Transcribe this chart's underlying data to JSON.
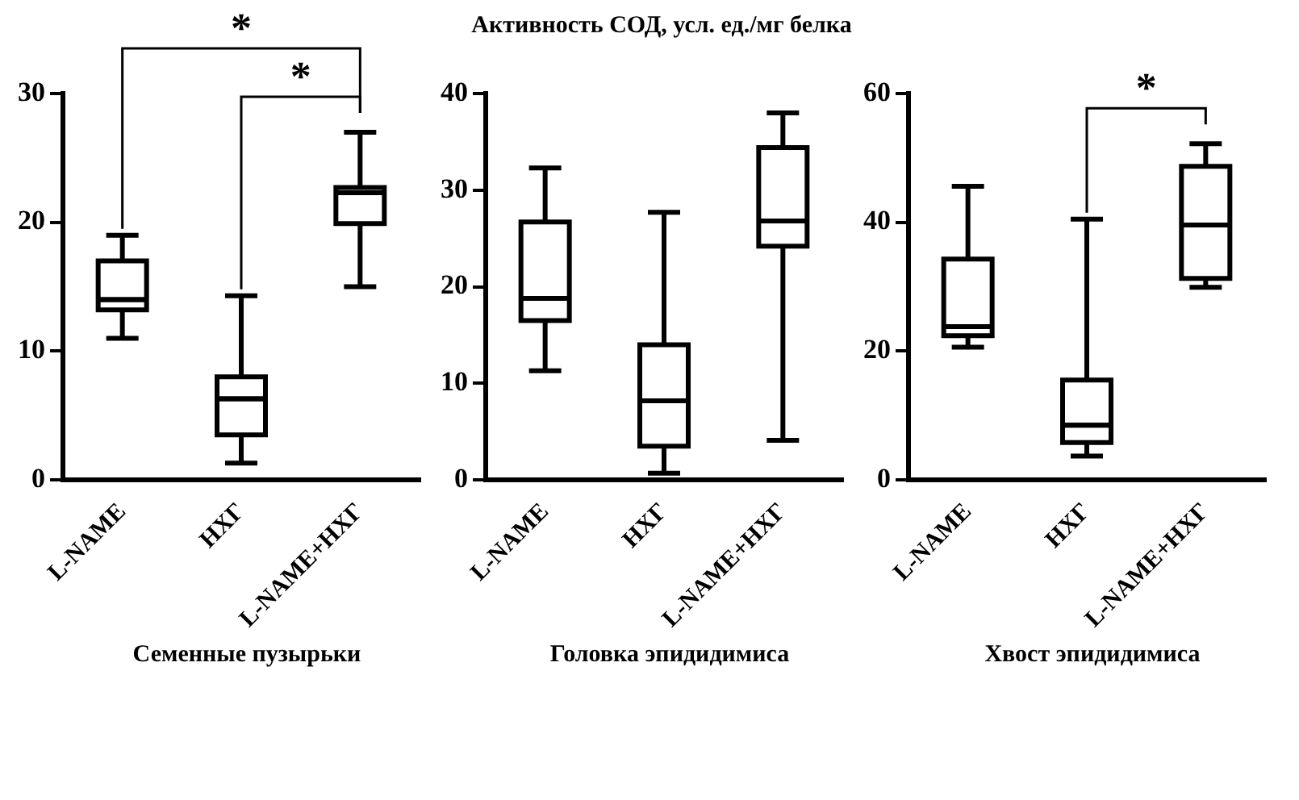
{
  "chart_data": [
    {
      "type": "box",
      "xlabel": "Семенные пузырьки",
      "categories": [
        "L-NAME",
        "НХГ",
        "L-NAME+НХГ"
      ],
      "ylim": [
        0,
        30
      ],
      "yticks": [
        0,
        10,
        20,
        30
      ],
      "grid": false,
      "legend": false,
      "color": "#000000",
      "boxes": [
        {
          "low": 11,
          "q1": 13.2,
          "median": 14,
          "q3": 17,
          "high": 19
        },
        {
          "low": 1.3,
          "q1": 3.5,
          "median": 6.3,
          "q3": 8,
          "high": 14.3
        },
        {
          "low": 15,
          "q1": 19.9,
          "median": 22.3,
          "q3": 22.7,
          "high": 27
        }
      ],
      "annotations": [
        "*",
        "*"
      ]
    },
    {
      "type": "box",
      "title": "Активность СОД, усл. ед./мг белка",
      "xlabel": "Головка эпидидимиса",
      "categories": [
        "L-NAME",
        "НХГ",
        "L-NAME+НХГ"
      ],
      "ylim": [
        0,
        40
      ],
      "yticks": [
        0,
        10,
        20,
        30,
        40
      ],
      "grid": false,
      "legend": false,
      "color": "#000000",
      "boxes": [
        {
          "low": 11.3,
          "q1": 16.5,
          "median": 18.8,
          "q3": 26.7,
          "high": 32.3
        },
        {
          "low": 0.7,
          "q1": 3.5,
          "median": 8.2,
          "q3": 14,
          "high": 27.7
        },
        {
          "low": 4.1,
          "q1": 24.2,
          "median": 26.8,
          "q3": 34.4,
          "high": 38
        }
      ]
    },
    {
      "type": "box",
      "xlabel": "Хвост эпидидимиса",
      "categories": [
        "L-NAME",
        "НХГ",
        "L-NAME+НХГ"
      ],
      "ylim": [
        0,
        60
      ],
      "yticks": [
        0,
        20,
        40,
        60
      ],
      "grid": false,
      "legend": false,
      "color": "#000000",
      "boxes": [
        {
          "low": 20.6,
          "q1": 22.4,
          "median": 23.8,
          "q3": 34.3,
          "high": 45.6
        },
        {
          "low": 3.7,
          "q1": 5.8,
          "median": 8.5,
          "q3": 15.5,
          "high": 40.5
        },
        {
          "low": 29.9,
          "q1": 31.3,
          "median": 39.6,
          "q3": 48.7,
          "high": 52.2
        }
      ],
      "annotations": [
        "*"
      ]
    }
  ]
}
